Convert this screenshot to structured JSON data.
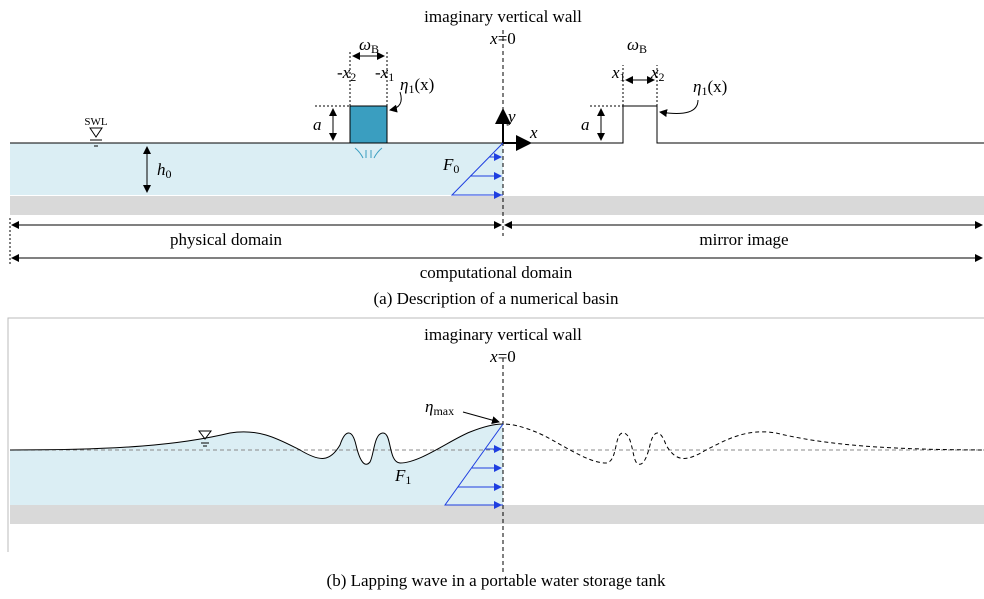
{
  "panel_a": {
    "wall_label": "imaginary vertical wall",
    "origin": {
      "var": "x",
      "rest": "=0"
    },
    "left": {
      "width": {
        "base": "ω",
        "sub": "B"
      },
      "x_left": {
        "base": "-x",
        "sub": "2"
      },
      "x_right": {
        "base": "-x",
        "sub": "1"
      },
      "height": "a",
      "profile": {
        "base": "η",
        "sub": "1",
        "arg": "(x)"
      }
    },
    "right": {
      "width": {
        "base": "ω",
        "sub": "B"
      },
      "x_left": {
        "base": "x",
        "sub": "1"
      },
      "x_right": {
        "base": "x",
        "sub": "2"
      },
      "height": "a",
      "profile": {
        "base": "η",
        "sub": "1",
        "arg": "(x)"
      }
    },
    "swl": "SWL",
    "depth": {
      "base": "h",
      "sub": "0"
    },
    "axis_y": "y",
    "axis_x": "x",
    "force": {
      "base": "F",
      "sub": "0"
    },
    "physical": "physical domain",
    "mirror": "mirror image",
    "computational": "computational domain",
    "caption": "(a)  Description  of  a  numerical  basin"
  },
  "panel_b": {
    "wall_label": "imaginary vertical wall",
    "origin": {
      "var": "x",
      "rest": "=0"
    },
    "peak": {
      "base": "η",
      "sub": "max"
    },
    "force": {
      "base": "F",
      "sub": "1"
    },
    "caption": "(b)  Lapping  wave  in  a  portable  water  storage  tank"
  }
}
